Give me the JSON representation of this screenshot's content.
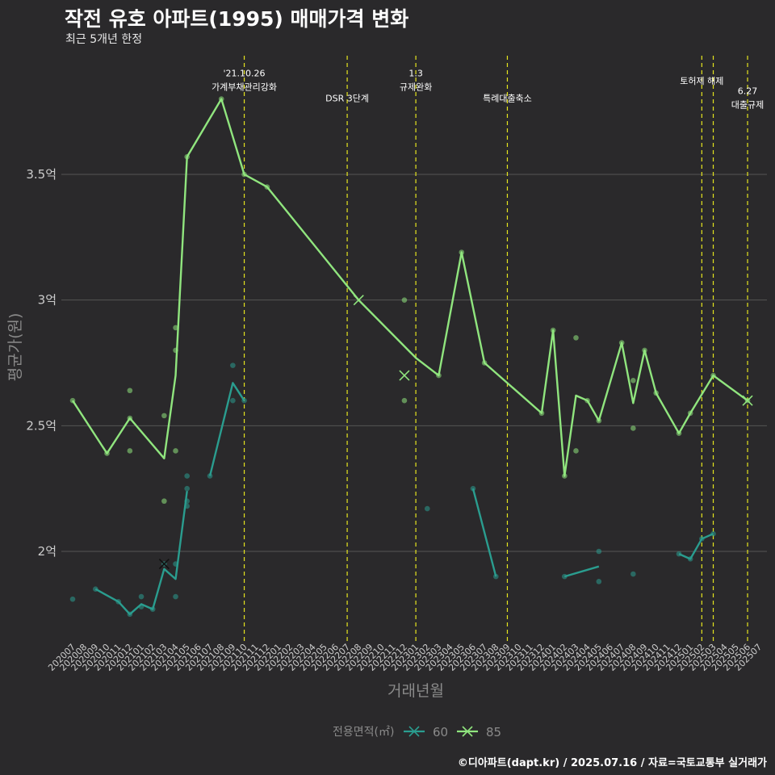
{
  "title": "작전 유호 아파트(1995) 매매가격 변화",
  "subtitle": "최근 5개년 한정",
  "caption": "©디아파트(dapt.kr) / 2025.07.16 / 자료=국토교통부 실거래가",
  "chart_data": {
    "type": "line",
    "xlabel": "거래년월",
    "ylabel": "평균가(원)",
    "x_categories": [
      "202007",
      "202008",
      "202009",
      "202010",
      "202011",
      "202012",
      "202101",
      "202102",
      "202103",
      "202104",
      "202105",
      "202106",
      "202107",
      "202108",
      "202109",
      "202110",
      "202111",
      "202112",
      "202201",
      "202202",
      "202203",
      "202204",
      "202205",
      "202206",
      "202207",
      "202208",
      "202209",
      "202210",
      "202211",
      "202212",
      "202301",
      "202302",
      "202303",
      "202304",
      "202305",
      "202306",
      "202307",
      "202308",
      "202309",
      "202310",
      "202311",
      "202312",
      "202401",
      "202402",
      "202403",
      "202404",
      "202405",
      "202406",
      "202407",
      "202408",
      "202409",
      "202410",
      "202411",
      "202412",
      "202501",
      "202502",
      "202503",
      "202504",
      "202505",
      "202506",
      "202507"
    ],
    "y_ticks": [
      {
        "value": 2.0,
        "label": "2억"
      },
      {
        "value": 2.5,
        "label": "2.5억"
      },
      {
        "value": 3.0,
        "label": "3억"
      },
      {
        "value": 3.5,
        "label": "3.5억"
      }
    ],
    "ylim": [
      1.63,
      3.9
    ],
    "grid": true,
    "legend": {
      "title": "전용면적(㎡)",
      "position": "bottom",
      "items": [
        "60",
        "85"
      ]
    },
    "colors": {
      "s60": "#2a9d8f",
      "s85": "#90e57e",
      "vline": "#e5e51e",
      "grid": "#555555",
      "text": "#cccccc",
      "axis_title": "#8a8a8a"
    },
    "series": [
      {
        "name": "60",
        "line_segments": [
          [
            [
              "202009",
              1.85
            ],
            [
              "202011",
              1.8
            ],
            [
              "202012",
              1.75
            ],
            [
              "202101",
              1.79
            ],
            [
              "202102",
              1.77
            ],
            [
              "202103",
              1.93
            ],
            [
              "202104",
              1.89
            ],
            [
              "202105",
              2.24
            ]
          ],
          [
            [
              "202107",
              2.3
            ],
            [
              "202109",
              2.67
            ],
            [
              "202110",
              2.6
            ]
          ],
          [
            [
              "202306",
              2.25
            ],
            [
              "202308",
              1.9
            ]
          ],
          [
            [
              "202402",
              1.9
            ],
            [
              "202405",
              1.94
            ]
          ],
          [
            [
              "202412",
              1.99
            ],
            [
              "202501",
              1.97
            ],
            [
              "202502",
              2.05
            ],
            [
              "202503",
              2.07
            ]
          ]
        ],
        "points": [
          [
            "202007",
            1.81
          ],
          [
            "202009",
            1.85
          ],
          [
            "202011",
            1.8
          ],
          [
            "202012",
            1.75
          ],
          [
            "202101",
            1.82
          ],
          [
            "202101",
            1.78
          ],
          [
            "202102",
            1.77
          ],
          [
            "202103",
            1.95
          ],
          [
            "202104",
            1.82
          ],
          [
            "202104",
            1.95
          ],
          [
            "202105",
            2.3
          ],
          [
            "202105",
            2.25
          ],
          [
            "202105",
            2.2
          ],
          [
            "202105",
            2.18
          ],
          [
            "202107",
            2.3
          ],
          [
            "202109",
            2.74
          ],
          [
            "202109",
            2.6
          ],
          [
            "202110",
            2.6
          ],
          [
            "202302",
            2.17
          ],
          [
            "202306",
            2.25
          ],
          [
            "202308",
            1.9
          ],
          [
            "202402",
            1.9
          ],
          [
            "202405",
            2.0
          ],
          [
            "202405",
            1.88
          ],
          [
            "202408",
            1.91
          ],
          [
            "202412",
            1.99
          ],
          [
            "202501",
            1.97
          ],
          [
            "202502",
            2.05
          ],
          [
            "202503",
            2.07
          ]
        ],
        "cross_markers": [
          [
            "202103",
            1.95
          ]
        ]
      },
      {
        "name": "85",
        "line_segments": [
          [
            [
              "202007",
              2.6
            ],
            [
              "202010",
              2.39
            ],
            [
              "202012",
              2.53
            ],
            [
              "202103",
              2.37
            ],
            [
              "202104",
              2.7
            ],
            [
              "202105",
              3.57
            ],
            [
              "202108",
              3.8
            ],
            [
              "202110",
              3.5
            ],
            [
              "202112",
              3.45
            ],
            [
              "202208",
              3.0
            ],
            [
              "202301",
              2.77
            ],
            [
              "202303",
              2.7
            ],
            [
              "202305",
              3.19
            ],
            [
              "202307",
              2.75
            ],
            [
              "202312",
              2.55
            ],
            [
              "202401",
              2.88
            ],
            [
              "202402",
              2.3
            ],
            [
              "202403",
              2.62
            ],
            [
              "202404",
              2.6
            ],
            [
              "202405",
              2.52
            ],
            [
              "202407",
              2.83
            ],
            [
              "202408",
              2.59
            ],
            [
              "202409",
              2.8
            ],
            [
              "202410",
              2.63
            ],
            [
              "202412",
              2.47
            ],
            [
              "202501",
              2.55
            ],
            [
              "202503",
              2.7
            ],
            [
              "202506",
              2.6
            ]
          ]
        ],
        "points": [
          [
            "202007",
            2.6
          ],
          [
            "202010",
            2.39
          ],
          [
            "202012",
            2.64
          ],
          [
            "202012",
            2.53
          ],
          [
            "202012",
            2.4
          ],
          [
            "202103",
            2.54
          ],
          [
            "202103",
            2.2
          ],
          [
            "202104",
            2.89
          ],
          [
            "202104",
            2.8
          ],
          [
            "202104",
            2.4
          ],
          [
            "202105",
            3.57
          ],
          [
            "202108",
            3.8
          ],
          [
            "202110",
            3.5
          ],
          [
            "202112",
            3.45
          ],
          [
            "202212",
            3.0
          ],
          [
            "202212",
            2.6
          ],
          [
            "202303",
            2.7
          ],
          [
            "202305",
            3.19
          ],
          [
            "202307",
            2.75
          ],
          [
            "202312",
            2.55
          ],
          [
            "202401",
            2.88
          ],
          [
            "202402",
            2.3
          ],
          [
            "202403",
            2.85
          ],
          [
            "202403",
            2.4
          ],
          [
            "202404",
            2.6
          ],
          [
            "202405",
            2.52
          ],
          [
            "202407",
            2.83
          ],
          [
            "202408",
            2.68
          ],
          [
            "202408",
            2.49
          ],
          [
            "202409",
            2.8
          ],
          [
            "202410",
            2.63
          ],
          [
            "202412",
            2.47
          ],
          [
            "202501",
            2.55
          ],
          [
            "202503",
            2.7
          ],
          [
            "202506",
            2.6
          ]
        ],
        "cross_markers": [
          [
            "202208",
            3.0
          ],
          [
            "202212",
            2.7
          ],
          [
            "202506",
            2.6
          ]
        ]
      }
    ],
    "events": [
      {
        "x": "202110",
        "lines": [
          "'21.10.26",
          "가계부채관리강화"
        ],
        "label_y": 3.89
      },
      {
        "x": "202207",
        "lines": [
          "DSR 3단계"
        ],
        "label_y": 3.79
      },
      {
        "x": "202301",
        "lines": [
          "1.3",
          "규제완화"
        ],
        "label_y": 3.89
      },
      {
        "x": "202309",
        "lines": [
          "특례대출축소"
        ],
        "label_y": 3.79
      },
      {
        "x": "202502",
        "lines": [
          "토허제 해제"
        ],
        "label_y": 3.86
      },
      {
        "x": "202503",
        "lines": [],
        "label_y": 3.86
      },
      {
        "x": "202506",
        "lines": [
          "6.27",
          "대출규제"
        ],
        "label_y": 3.82
      }
    ]
  }
}
